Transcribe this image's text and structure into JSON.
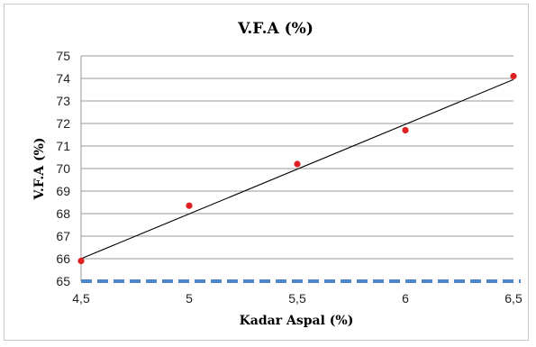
{
  "chart_data": {
    "type": "scatter",
    "title": "V.F.A (%)",
    "xlabel": "Kadar Aspal (%)",
    "ylabel": "V.F.A (%)",
    "x": [
      4.5,
      5,
      5.5,
      6,
      6.5
    ],
    "x_tick_labels": [
      "4,5",
      "5",
      "5,5",
      "6",
      "6,5"
    ],
    "xlim": [
      4.5,
      6.5
    ],
    "ylim": [
      65,
      75
    ],
    "y_ticks": [
      65,
      66,
      67,
      68,
      69,
      70,
      71,
      72,
      73,
      74,
      75
    ],
    "grid": true,
    "series": [
      {
        "values": [
          65.9,
          68.35,
          70.2,
          71.7,
          74.1
        ],
        "color": "#e02020",
        "marker": "circle"
      }
    ],
    "trendline": {
      "x": [
        4.5,
        6.5
      ],
      "y": [
        66.0,
        73.95
      ],
      "color": "#000000"
    },
    "reference_line": {
      "y": 65,
      "color": "#4f86c6",
      "style": "dashed"
    }
  }
}
